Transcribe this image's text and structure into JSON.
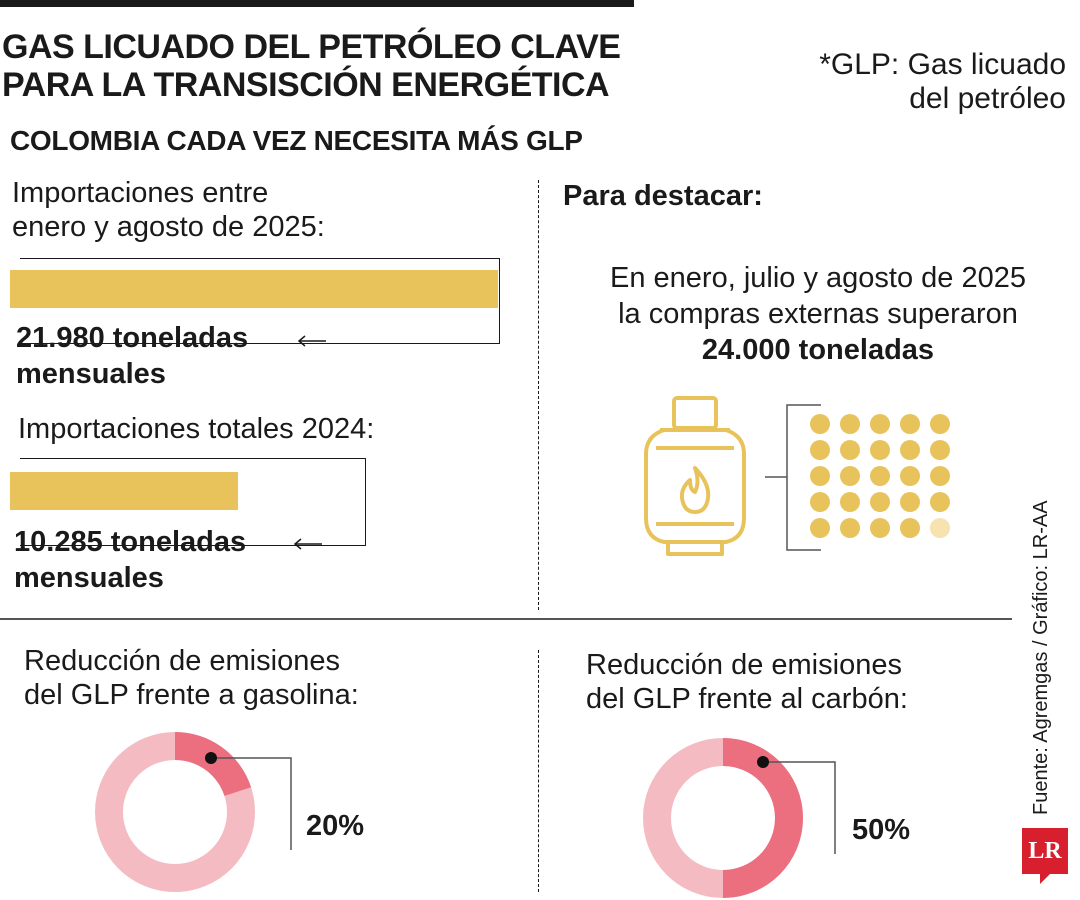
{
  "title_line1": "GAS LICUADO DEL PETRÓLEO CLAVE",
  "title_line2": "PARA LA TRANSISCIÓN ENERGÉTICA",
  "note_line1": "*GLP: Gas licuado",
  "note_line2": "del petróleo",
  "subtitle": "COLOMBIA CADA VEZ NECESITA MÁS GLP",
  "highlight": {
    "heading": "Para destacar:",
    "line1": "En enero, julio y agosto de 2025",
    "line2": "la compras externas superaron",
    "value": "24.000 toneladas",
    "dots_total": 25,
    "dots_filled": 24
  },
  "source": "Fuente: Agremgas / Gráfico: LR-AA",
  "logo": "LR",
  "colors": {
    "bar": "#e8c35c",
    "dot": "#e8c35c",
    "dot_faded": "#f6e3b0",
    "donut_share": "#ec6f80",
    "donut_rest": "#f4bcc2",
    "icon": "#e8c35c",
    "logo": "#d71f2e"
  },
  "chart_data": [
    {
      "type": "bar",
      "label_line1": "Importaciones entre",
      "label_line2": "enero y agosto de 2025:",
      "value": 21980,
      "value_line1": "21.980 toneladas",
      "value_line2": "mensuales"
    },
    {
      "type": "bar",
      "label_line1": "Importaciones totales 2024:",
      "value": 10285,
      "value_line1": "10.285 toneladas",
      "value_line2": "mensuales"
    },
    {
      "type": "pie",
      "label_line1": "Reducción de emisiones",
      "label_line2": "del GLP frente a gasolina:",
      "value": 20,
      "value_label": "20%"
    },
    {
      "type": "pie",
      "label_line1": "Reducción de emisiones",
      "label_line2": "del GLP frente al carbón:",
      "value": 50,
      "value_label": "50%"
    }
  ]
}
